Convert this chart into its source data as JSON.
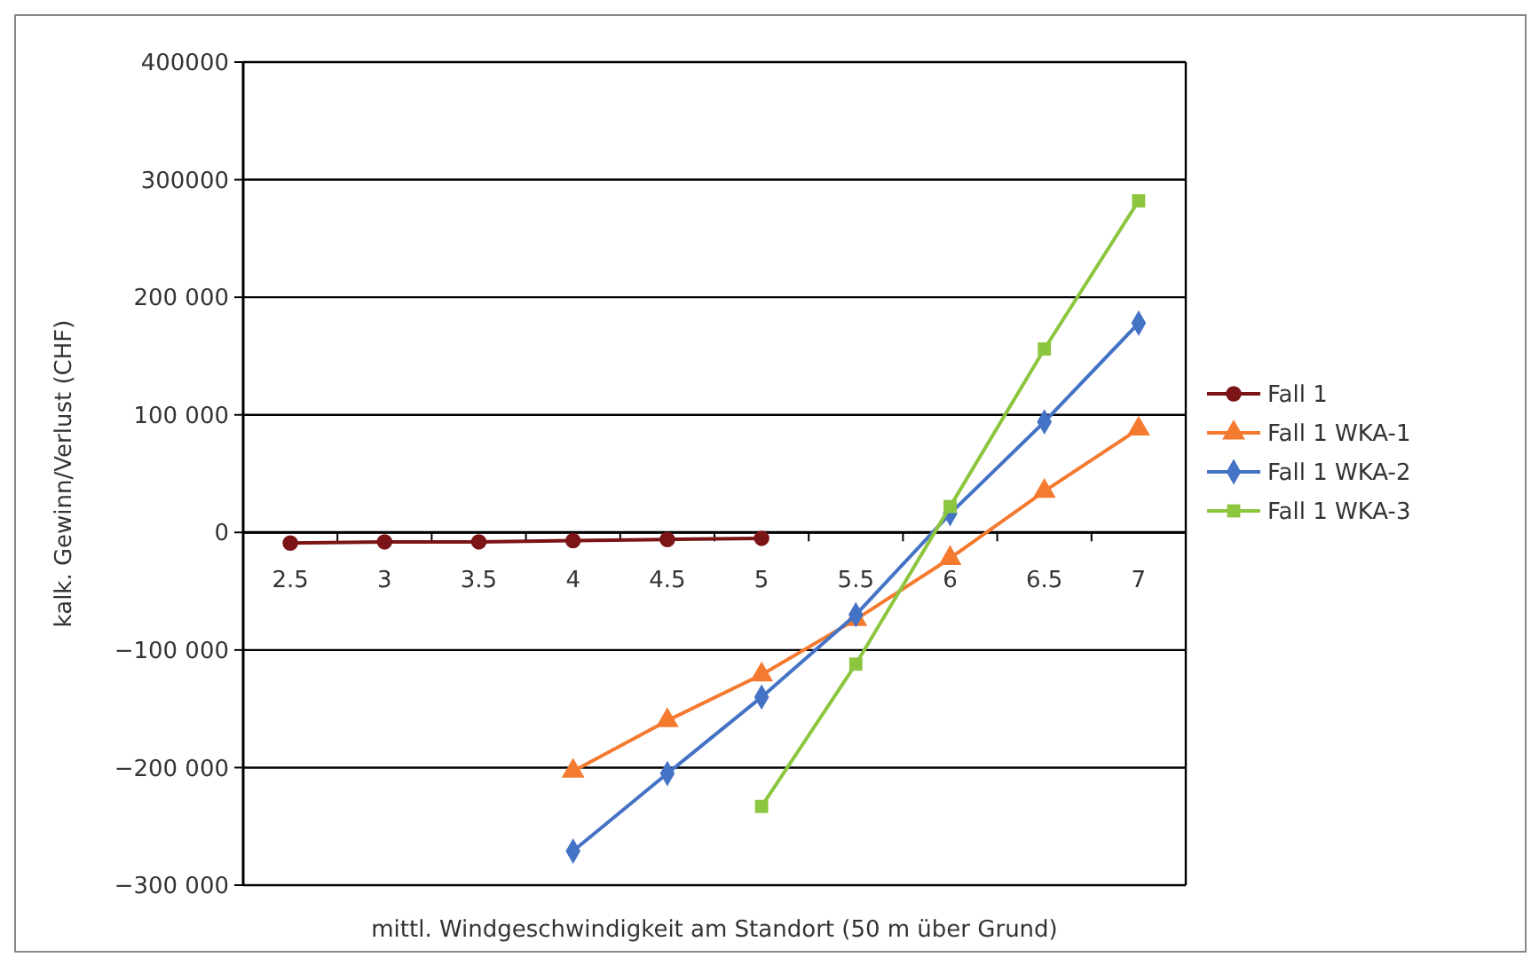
{
  "chart_data": {
    "type": "line",
    "xlabel": "mittl. Windgeschwindigkeit am Standort (50 m über Grund)",
    "ylabel": "kalk. Gewinn/Verlust (CHF)",
    "categories": [
      "2.5",
      "3",
      "3.5",
      "4",
      "4.5",
      "5",
      "5.5",
      "6",
      "6.5",
      "7"
    ],
    "ylim": [
      -300000,
      400000
    ],
    "yticks": [
      {
        "value": -300000,
        "label": "−300 000"
      },
      {
        "value": -200000,
        "label": "−200 000"
      },
      {
        "value": -100000,
        "label": "−100 000"
      },
      0,
      {
        "value": 100000,
        "label": "100 000"
      },
      {
        "value": 200000,
        "label": "200 000"
      },
      300000,
      400000
    ],
    "grid": "y",
    "legend": "right",
    "series": [
      {
        "name": "Fall 1",
        "color": "#7b1416",
        "marker": "circle",
        "values": [
          -9000,
          -8000,
          -8000,
          -7000,
          -6000,
          -5000,
          null,
          null,
          null,
          null
        ]
      },
      {
        "name": "Fall 1 WKA-1",
        "color": "#f47a30",
        "marker": "triangle",
        "values": [
          null,
          null,
          null,
          -203000,
          -160000,
          -121000,
          -74000,
          -22000,
          35000,
          88000
        ]
      },
      {
        "name": "Fall 1 WKA-2",
        "color": "#4472c4",
        "marker": "diamond",
        "values": [
          null,
          null,
          null,
          -271000,
          -205000,
          -140000,
          -70000,
          16000,
          94000,
          178000
        ]
      },
      {
        "name": "Fall 1 WKA-3",
        "color": "#8cc63f",
        "marker": "square",
        "values": [
          null,
          null,
          null,
          null,
          null,
          -233000,
          -112000,
          22000,
          156000,
          282000
        ]
      }
    ]
  }
}
